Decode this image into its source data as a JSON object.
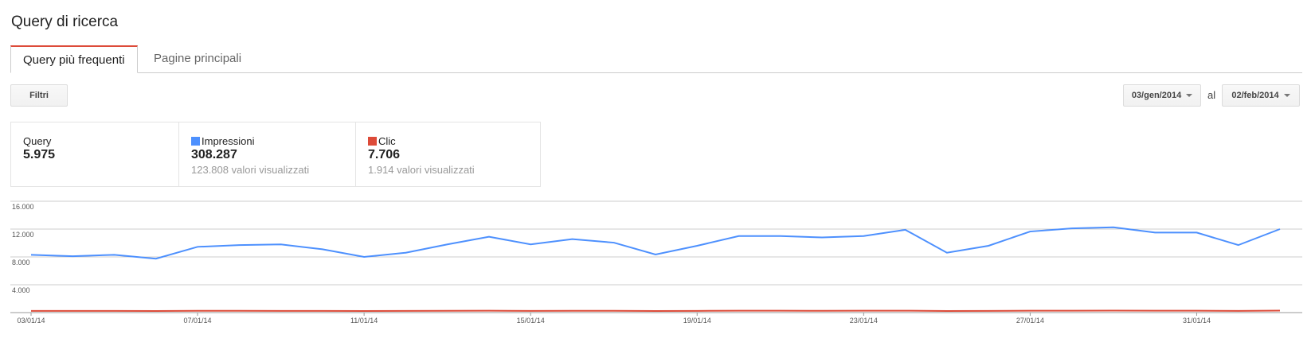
{
  "header": {
    "title": "Query di ricerca"
  },
  "tabs": [
    "Query più frequenti",
    "Pagine principali"
  ],
  "toolbar": {
    "filter": "Filtri",
    "date_from": "03/gen/2014",
    "date_separator": "al",
    "date_to": "02/feb/2014"
  },
  "stats": [
    {
      "label": "Query",
      "value": "5.975"
    },
    {
      "value": "308.287",
      "note": "123.808 valori visualizzati"
    },
    {
      "value": "7.706",
      "note": "1.914 valori visualizzati"
    }
  ],
  "chart_data": {
    "type": "line",
    "categories": [
      "03/01/14",
      null,
      null,
      null,
      "07/01/14",
      null,
      null,
      null,
      "11/01/14",
      null,
      null,
      null,
      "15/01/14",
      null,
      null,
      null,
      "19/01/14",
      null,
      null,
      null,
      "23/01/14",
      null,
      null,
      null,
      "27/01/14",
      null,
      null,
      null,
      "31/01/14",
      null,
      null
    ],
    "series": [
      {
        "name": "Impressioni",
        "color": "#4d90fe",
        "values": [
          8300,
          8100,
          8300,
          7750,
          9450,
          9700,
          9800,
          9100,
          8000,
          8600,
          9800,
          10900,
          9800,
          10550,
          10050,
          8350,
          9600,
          11000,
          11000,
          10800,
          11000,
          11900,
          8600,
          9600,
          11650,
          12100,
          12250,
          11500,
          11500,
          9700,
          12000
        ]
      },
      {
        "name": "Clic",
        "color": "#dd4b39",
        "values": [
          250,
          240,
          250,
          230,
          260,
          255,
          250,
          240,
          230,
          240,
          260,
          270,
          250,
          260,
          255,
          230,
          245,
          265,
          270,
          260,
          265,
          275,
          230,
          250,
          270,
          275,
          280,
          265,
          265,
          250,
          280
        ]
      }
    ],
    "ylim": [
      0,
      16000
    ],
    "yticks": [
      {
        "value": 4000,
        "label": "4.000"
      },
      {
        "value": 8000,
        "label": "8.000"
      },
      {
        "value": 12000,
        "label": "12.000"
      },
      {
        "value": 16000,
        "label": "16.000"
      }
    ],
    "grid": true
  }
}
